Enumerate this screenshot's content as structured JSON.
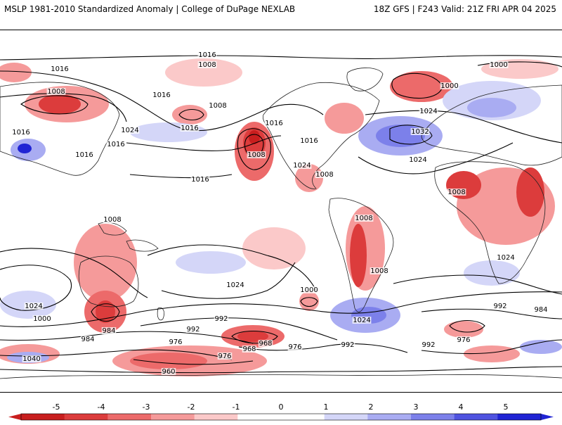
{
  "header": {
    "left_title": "MSLP 1981-2010 Standardized Anomaly | College of DuPage NEXLAB",
    "right_title": "18Z GFS | F243 Valid: 21Z FRI APR 04 2025"
  },
  "colors": {
    "neg5": "#c81e1e",
    "neg4": "#dc3c3c",
    "neg3": "#ec6a6a",
    "neg2": "#f59a9a",
    "neg1": "#fbc9c9",
    "neutral": "#ffffff",
    "pos1": "#d4d6f8",
    "pos2": "#a9acf2",
    "pos3": "#7c80ea",
    "pos4": "#4f53e0",
    "pos5": "#2024d4",
    "contour": "#000000",
    "land": "#222222"
  },
  "colorbar": {
    "ticks": [
      "-5",
      "-4",
      "-3",
      "-2",
      "-1",
      "0",
      "1",
      "2",
      "3",
      "4",
      "5"
    ]
  },
  "isobar_labels": [
    "1016",
    "1016",
    "1016",
    "1016",
    "1016",
    "1016",
    "1016",
    "1016",
    "1016",
    "1016",
    "1008",
    "1008",
    "1008",
    "1008",
    "1008",
    "1008",
    "1008",
    "1008",
    "1008",
    "1024",
    "1024",
    "1024",
    "1024",
    "1024",
    "1024",
    "1024",
    "1024",
    "1032",
    "1000",
    "1000",
    "1000",
    "1000",
    "992",
    "992",
    "992",
    "992",
    "992",
    "984",
    "984",
    "984",
    "976",
    "976",
    "976",
    "976",
    "968",
    "968",
    "960",
    "1040"
  ]
}
